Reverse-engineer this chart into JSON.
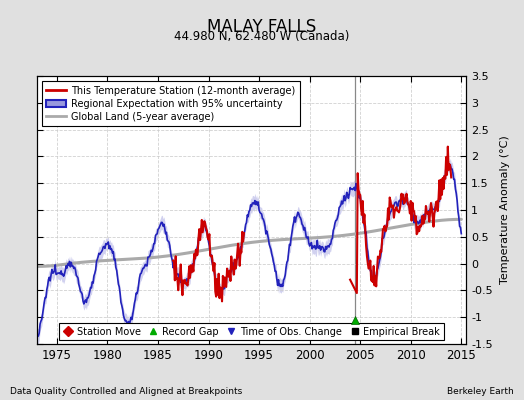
{
  "title": "MALAY FALLS",
  "subtitle": "44.980 N, 62.480 W (Canada)",
  "ylabel": "Temperature Anomaly (°C)",
  "xlabel_left": "Data Quality Controlled and Aligned at Breakpoints",
  "xlabel_right": "Berkeley Earth",
  "xlim": [
    1973.0,
    2015.5
  ],
  "ylim": [
    -1.5,
    3.5
  ],
  "yticks": [
    -1.5,
    -1.0,
    -0.5,
    0.0,
    0.5,
    1.0,
    1.5,
    2.0,
    2.5,
    3.0,
    3.5
  ],
  "xticks": [
    1975,
    1980,
    1985,
    1990,
    1995,
    2000,
    2005,
    2010,
    2015
  ],
  "vertical_line_x": 2004.5,
  "green_triangle_x": 2004.5,
  "green_triangle_y": -1.05,
  "station_color": "#cc0000",
  "regional_color": "#2222bb",
  "regional_fill_color": "#9999dd",
  "global_color": "#aaaaaa",
  "background_color": "#e0e0e0",
  "plot_bg_color": "#ffffff"
}
